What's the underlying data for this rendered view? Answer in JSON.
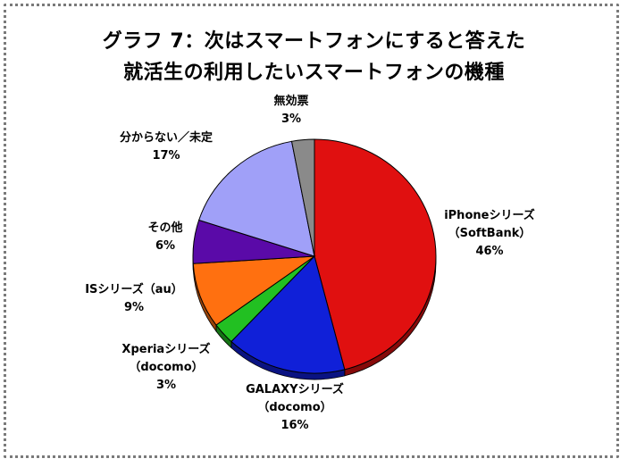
{
  "chart_data": {
    "type": "pie",
    "title_lines": [
      "グラフ 7：次はスマートフォンにすると答えた",
      "就活生の利用したいスマートフォンの機種"
    ],
    "slices": [
      {
        "lines": [
          "iPhoneシリーズ",
          "（SoftBank）"
        ],
        "value": 46,
        "label": "46%",
        "color": "#e01010"
      },
      {
        "lines": [
          "GALAXYシリーズ",
          "（docomo）"
        ],
        "value": 16,
        "label": "16%",
        "color": "#1020d8"
      },
      {
        "lines": [
          "Xperiaシリーズ",
          "（docomo）"
        ],
        "value": 3,
        "label": "3%",
        "color": "#22c022"
      },
      {
        "lines": [
          "ISシリーズ（au）"
        ],
        "value": 9,
        "label": "9%",
        "color": "#ff7010"
      },
      {
        "lines": [
          "その他"
        ],
        "value": 6,
        "label": "6%",
        "color": "#5a0aa8"
      },
      {
        "lines": [
          "分からない／未定"
        ],
        "value": 17,
        "label": "17%",
        "color": "#a0a0f8"
      },
      {
        "lines": [
          "無効票"
        ],
        "value": 3,
        "label": "3%",
        "color": "#8a8a8a"
      }
    ]
  }
}
